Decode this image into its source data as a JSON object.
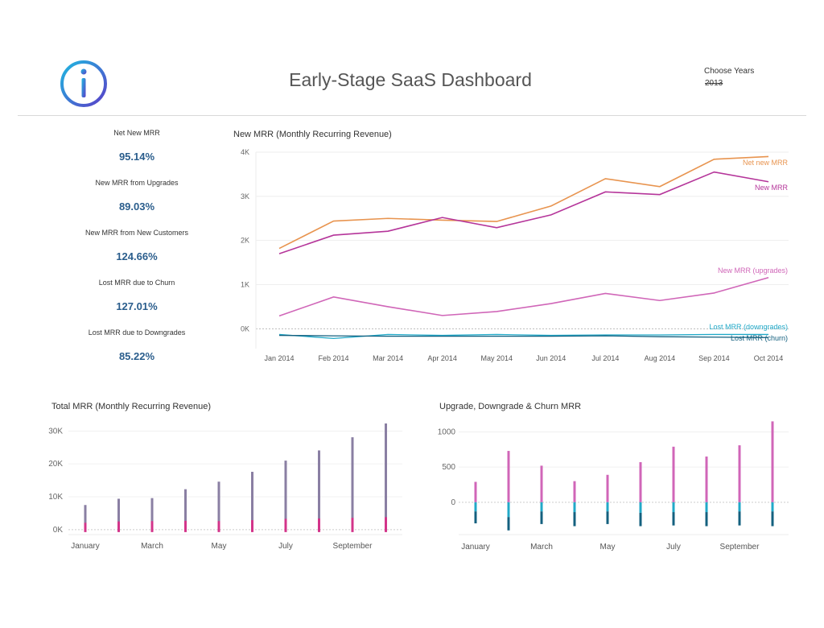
{
  "header": {
    "title": "Early-Stage SaaS Dashboard",
    "filter_label": "Choose Years",
    "filter_value": "2013"
  },
  "kpis": [
    {
      "label": "Net New MRR",
      "value": "95.14%"
    },
    {
      "label": "New MRR from Upgrades",
      "value": "89.03%"
    },
    {
      "label": "New MRR from New Customers",
      "value": "124.66%"
    },
    {
      "label": "Lost MRR due to Churn",
      "value": "127.01%"
    },
    {
      "label": "Lost MRR due to Downgrades",
      "value": "85.22%"
    }
  ],
  "colors": {
    "net_new": "#e8944f",
    "new_mrr": "#b5359a",
    "upgrades": "#d066b8",
    "downgrades": "#21a9c8",
    "churn": "#14607f",
    "total": "#8a7fa3",
    "total_small": "#d3348a"
  },
  "chart_data": [
    {
      "type": "line",
      "title": "New MRR (Monthly Recurring Revenue)",
      "categories": [
        "Jan 2014",
        "Feb 2014",
        "Mar 2014",
        "Apr 2014",
        "May 2014",
        "Jun 2014",
        "Jul 2014",
        "Aug 2014",
        "Sep 2014",
        "Oct 2014"
      ],
      "ylim": [
        -450,
        4000
      ],
      "yticks": [
        0,
        1000,
        2000,
        3000,
        4000
      ],
      "ytick_labels": [
        "0K",
        "1K",
        "2K",
        "3K",
        "4K"
      ],
      "grid": true,
      "series": [
        {
          "name": "Net new MRR",
          "color": "#e8944f",
          "values": [
            1820,
            2440,
            2500,
            2460,
            2430,
            2780,
            3400,
            3220,
            3840,
            3900
          ]
        },
        {
          "name": "New MRR",
          "color": "#b5359a",
          "values": [
            1700,
            2120,
            2210,
            2520,
            2290,
            2580,
            3100,
            3040,
            3550,
            3330
          ]
        },
        {
          "name": "New MRR (upgrades)",
          "color": "#d066b8",
          "values": [
            290,
            720,
            500,
            300,
            390,
            570,
            800,
            640,
            810,
            1160
          ]
        },
        {
          "name": "Lost MRR (downgrades)",
          "color": "#21a9c8",
          "values": [
            -130,
            -220,
            -130,
            -150,
            -130,
            -150,
            -140,
            -140,
            -130,
            -130
          ]
        },
        {
          "name": "Lost MRR (churn)",
          "color": "#14607f",
          "values": [
            -150,
            -160,
            -170,
            -170,
            -170,
            -170,
            -160,
            -180,
            -190,
            -200
          ]
        }
      ]
    },
    {
      "type": "bar",
      "title": "Total MRR (Monthly Recurring Revenue)",
      "categories": [
        "January",
        "February",
        "March",
        "April",
        "May",
        "June",
        "July",
        "August",
        "September",
        "October"
      ],
      "xtick_labels": [
        "January",
        "",
        "March",
        "",
        "May",
        "",
        "July",
        "",
        "September",
        ""
      ],
      "ylim": [
        -1500,
        34000
      ],
      "yticks": [
        0,
        10000,
        20000,
        30000
      ],
      "ytick_labels": [
        "0K",
        "10K",
        "20K",
        "30K"
      ],
      "series": [
        {
          "color": "#8a7fa3",
          "values": [
            7500,
            9400,
            9600,
            12300,
            14600,
            17600,
            21000,
            24100,
            28100,
            32300
          ]
        },
        {
          "color": "#d3348a",
          "values": [
            2100,
            2500,
            2600,
            2700,
            2600,
            2900,
            3300,
            3400,
            3600,
            3800
          ]
        }
      ]
    },
    {
      "type": "bar",
      "title": "Upgrade, Downgrade & Churn MRR",
      "categories": [
        "January",
        "February",
        "March",
        "April",
        "May",
        "June",
        "July",
        "August",
        "September",
        "October"
      ],
      "xtick_labels": [
        "January",
        "",
        "March",
        "",
        "May",
        "",
        "July",
        "",
        "September",
        ""
      ],
      "ylim": [
        -460,
        1200
      ],
      "yticks": [
        0,
        500,
        1000
      ],
      "ytick_labels": [
        "0",
        "500",
        "1000"
      ],
      "series": [
        {
          "color": "#d066b8",
          "values": [
            290,
            730,
            520,
            300,
            390,
            570,
            790,
            650,
            810,
            1150
          ]
        },
        {
          "color": "#21a9c8",
          "values": [
            -130,
            -210,
            -130,
            -140,
            -130,
            -150,
            -140,
            -140,
            -130,
            -130
          ]
        },
        {
          "color": "#14607f",
          "values": [
            -170,
            -190,
            -180,
            -200,
            -180,
            -190,
            -190,
            -200,
            -200,
            -210
          ]
        }
      ]
    }
  ]
}
